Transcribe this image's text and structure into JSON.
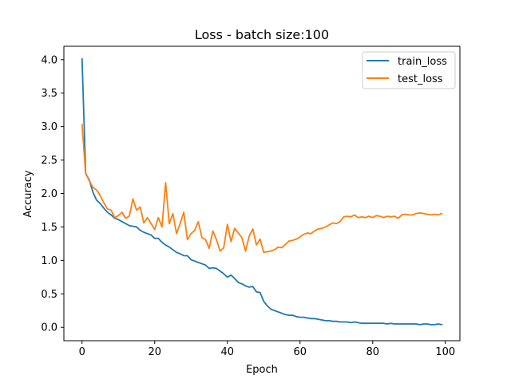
{
  "chart_data": {
    "type": "line",
    "title": "Loss - batch size:100",
    "xlabel": "Epoch",
    "ylabel": "Accuracy",
    "xlim": [
      -5,
      104
    ],
    "ylim": [
      -0.2,
      4.2
    ],
    "xticks": [
      0,
      20,
      40,
      60,
      80,
      100
    ],
    "xtick_labels": [
      "0",
      "20",
      "40",
      "60",
      "80",
      "100"
    ],
    "yticks": [
      0.0,
      0.5,
      1.0,
      1.5,
      2.0,
      2.5,
      3.0,
      3.5,
      4.0
    ],
    "ytick_labels": [
      "0.0",
      "0.5",
      "1.0",
      "1.5",
      "2.0",
      "2.5",
      "3.0",
      "3.5",
      "4.0"
    ],
    "grid": false,
    "legend_position": "top-right",
    "x": [
      0,
      1,
      2,
      3,
      4,
      5,
      6,
      7,
      8,
      9,
      10,
      11,
      12,
      13,
      14,
      15,
      16,
      17,
      18,
      19,
      20,
      21,
      22,
      23,
      24,
      25,
      26,
      27,
      28,
      29,
      30,
      31,
      32,
      33,
      34,
      35,
      36,
      37,
      38,
      39,
      40,
      41,
      42,
      43,
      44,
      45,
      46,
      47,
      48,
      49,
      50,
      51,
      52,
      53,
      54,
      55,
      56,
      57,
      58,
      59,
      60,
      61,
      62,
      63,
      64,
      65,
      66,
      67,
      68,
      69,
      70,
      71,
      72,
      73,
      74,
      75,
      76,
      77,
      78,
      79,
      80,
      81,
      82,
      83,
      84,
      85,
      86,
      87,
      88,
      89,
      90,
      91,
      92,
      93,
      94,
      95,
      96,
      97,
      98,
      99
    ],
    "series": [
      {
        "name": "train_loss",
        "color": "#1f77b4",
        "values": [
          4.01,
          2.3,
          2.2,
          2.02,
          1.9,
          1.85,
          1.78,
          1.72,
          1.68,
          1.63,
          1.61,
          1.58,
          1.55,
          1.52,
          1.51,
          1.5,
          1.45,
          1.42,
          1.4,
          1.38,
          1.33,
          1.33,
          1.27,
          1.23,
          1.2,
          1.16,
          1.12,
          1.1,
          1.07,
          1.07,
          1.01,
          0.99,
          0.97,
          0.95,
          0.93,
          0.88,
          0.89,
          0.88,
          0.84,
          0.8,
          0.75,
          0.78,
          0.73,
          0.67,
          0.65,
          0.62,
          0.6,
          0.61,
          0.53,
          0.52,
          0.39,
          0.32,
          0.27,
          0.25,
          0.23,
          0.21,
          0.19,
          0.18,
          0.18,
          0.16,
          0.15,
          0.15,
          0.14,
          0.13,
          0.13,
          0.12,
          0.11,
          0.1,
          0.1,
          0.09,
          0.09,
          0.08,
          0.08,
          0.08,
          0.07,
          0.08,
          0.07,
          0.06,
          0.06,
          0.06,
          0.06,
          0.06,
          0.06,
          0.06,
          0.05,
          0.06,
          0.05,
          0.05,
          0.05,
          0.05,
          0.05,
          0.05,
          0.05,
          0.04,
          0.05,
          0.05,
          0.04,
          0.04,
          0.05,
          0.04
        ]
      },
      {
        "name": "test_loss",
        "color": "#ff7f0e",
        "values": [
          3.03,
          2.3,
          2.19,
          2.09,
          2.05,
          1.97,
          1.86,
          1.77,
          1.75,
          1.64,
          1.67,
          1.72,
          1.63,
          1.66,
          1.92,
          1.75,
          1.8,
          1.56,
          1.64,
          1.55,
          1.46,
          1.64,
          1.5,
          2.16,
          1.55,
          1.7,
          1.4,
          1.55,
          1.72,
          1.31,
          1.4,
          1.45,
          1.58,
          1.34,
          1.31,
          1.18,
          1.44,
          1.31,
          1.14,
          1.19,
          1.54,
          1.28,
          1.48,
          1.41,
          1.34,
          1.14,
          1.36,
          1.47,
          1.23,
          1.32,
          1.12,
          1.13,
          1.14,
          1.16,
          1.2,
          1.19,
          1.24,
          1.29,
          1.3,
          1.32,
          1.35,
          1.39,
          1.41,
          1.4,
          1.44,
          1.47,
          1.48,
          1.5,
          1.53,
          1.56,
          1.55,
          1.58,
          1.65,
          1.66,
          1.65,
          1.68,
          1.64,
          1.65,
          1.64,
          1.66,
          1.64,
          1.67,
          1.66,
          1.64,
          1.66,
          1.65,
          1.66,
          1.63,
          1.68,
          1.69,
          1.68,
          1.68,
          1.7,
          1.71,
          1.7,
          1.69,
          1.68,
          1.69,
          1.68,
          1.7
        ]
      }
    ]
  }
}
